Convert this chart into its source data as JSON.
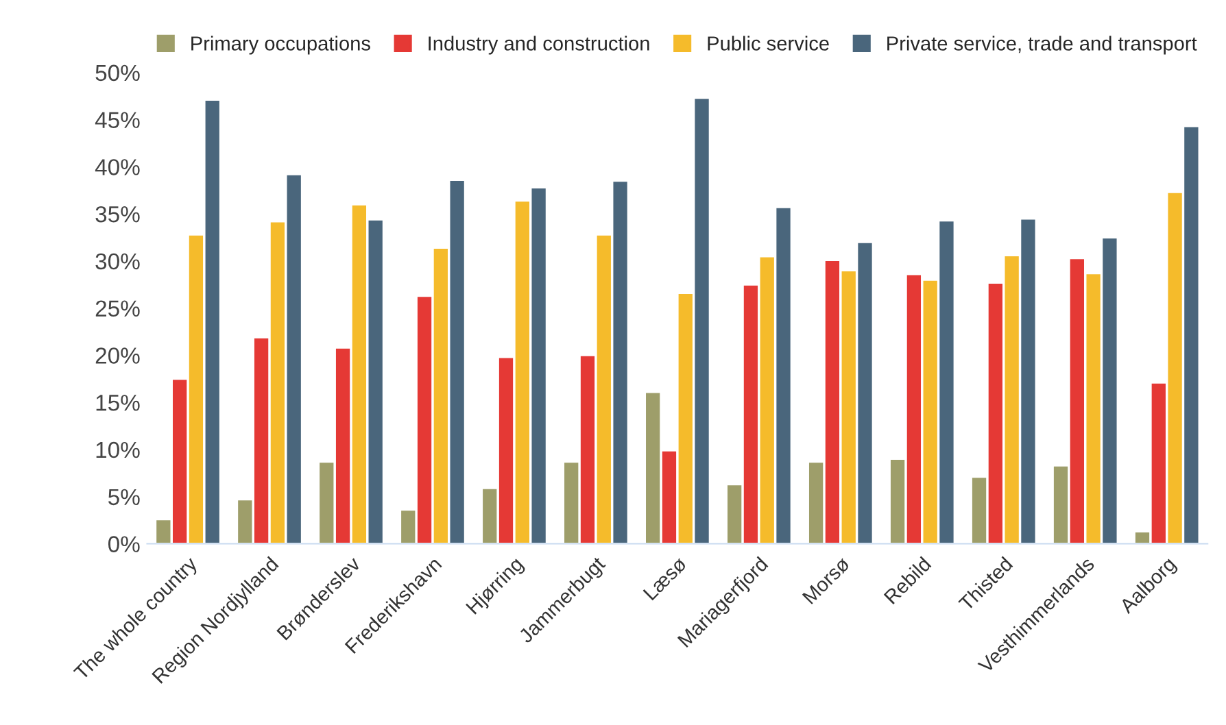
{
  "chart_data": {
    "type": "bar",
    "categories": [
      "The whole country",
      "Region Nordjylland",
      "Brønderslev",
      "Frederikshavn",
      "Hjørring",
      "Jammerbugt",
      "Læsø",
      "Mariagerfjord",
      "Morsø",
      "Rebild",
      "Thisted",
      "Vesthimmerlands",
      "Aalborg"
    ],
    "series": [
      {
        "name": "Primary occupations",
        "color": "#9e9e6a",
        "values": [
          2.6,
          4.7,
          8.7,
          3.6,
          5.9,
          8.7,
          16.1,
          6.3,
          8.7,
          9.0,
          7.1,
          8.3,
          1.3
        ]
      },
      {
        "name": "Industry and construction",
        "color": "#e53935",
        "values": [
          17.5,
          21.9,
          20.8,
          26.3,
          19.8,
          20.0,
          9.9,
          27.5,
          30.1,
          28.6,
          27.7,
          30.3,
          17.1
        ]
      },
      {
        "name": "Public service",
        "color": "#f5bb2b",
        "values": [
          32.8,
          34.2,
          36.0,
          31.4,
          36.4,
          32.8,
          26.6,
          30.5,
          29.0,
          28.0,
          30.6,
          28.7,
          37.3
        ]
      },
      {
        "name": "Private service, trade and transport",
        "color": "#4a667c",
        "values": [
          47.1,
          39.2,
          34.4,
          38.6,
          37.8,
          38.5,
          47.3,
          35.7,
          32.0,
          34.3,
          34.5,
          32.5,
          44.3
        ]
      }
    ],
    "ylim": [
      0,
      50
    ],
    "yticks": [
      {
        "value": 0,
        "label": "0%"
      },
      {
        "value": 5,
        "label": "5%"
      },
      {
        "value": 10,
        "label": "10%"
      },
      {
        "value": 15,
        "label": "15%"
      },
      {
        "value": 20,
        "label": "20%"
      },
      {
        "value": 25,
        "label": "25%"
      },
      {
        "value": 30,
        "label": "30%"
      },
      {
        "value": 35,
        "label": "35%"
      },
      {
        "value": 40,
        "label": "40%"
      },
      {
        "value": 45,
        "label": "45%"
      },
      {
        "value": 50,
        "label": "50%"
      }
    ],
    "grid": false,
    "legend": "top"
  }
}
